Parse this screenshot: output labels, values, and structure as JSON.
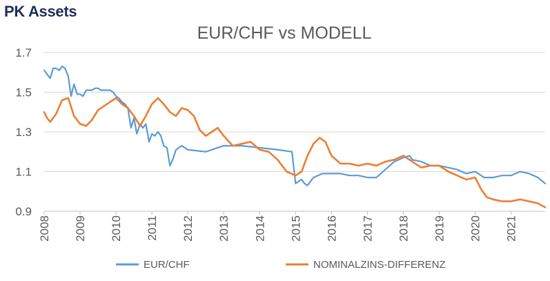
{
  "brand": {
    "logo_text": "PK Assets"
  },
  "chart_data": {
    "type": "line",
    "title": "EUR/CHF vs MODELL",
    "xlabel": "",
    "ylabel": "",
    "ylim": [
      0.9,
      1.7
    ],
    "yticks": [
      "1.7",
      "1.5",
      "1.3",
      "1.1",
      "0.9"
    ],
    "ytick_values": [
      1.7,
      1.5,
      1.3,
      1.1,
      0.9
    ],
    "xlim": [
      2008.0,
      2021.95
    ],
    "xticks": [
      "2008",
      "2009",
      "2010",
      "2011",
      "2012",
      "2013",
      "2014",
      "2015",
      "2016",
      "2017",
      "2018",
      "2019",
      "2020",
      "2021"
    ],
    "grid": "horizontal",
    "legend_position": "bottom",
    "colors": {
      "eurchf": "#5b9bd5",
      "nominal": "#ed7d31",
      "grid": "#d9d9d9",
      "axis": "#bfbfbf",
      "text": "#595959"
    },
    "series": [
      {
        "name": "EUR/CHF",
        "color": "#5b9bd5",
        "x": [
          2008.0,
          2008.08,
          2008.17,
          2008.25,
          2008.33,
          2008.42,
          2008.5,
          2008.58,
          2008.67,
          2008.75,
          2008.83,
          2008.92,
          2009.0,
          2009.08,
          2009.17,
          2009.25,
          2009.33,
          2009.42,
          2009.5,
          2009.58,
          2009.67,
          2009.75,
          2009.83,
          2009.92,
          2010.0,
          2010.08,
          2010.17,
          2010.25,
          2010.33,
          2010.42,
          2010.5,
          2010.58,
          2010.67,
          2010.75,
          2010.83,
          2010.92,
          2011.0,
          2011.08,
          2011.17,
          2011.25,
          2011.33,
          2011.42,
          2011.5,
          2011.58,
          2011.67,
          2011.75,
          2011.83,
          2012.0,
          2012.5,
          2013.0,
          2013.5,
          2014.0,
          2014.5,
          2014.9,
          2015.0,
          2015.08,
          2015.17,
          2015.25,
          2015.33,
          2015.5,
          2015.75,
          2016.0,
          2016.25,
          2016.5,
          2016.75,
          2017.0,
          2017.25,
          2017.5,
          2017.75,
          2018.0,
          2018.17,
          2018.25,
          2018.5,
          2018.75,
          2019.0,
          2019.25,
          2019.5,
          2019.75,
          2020.0,
          2020.25,
          2020.5,
          2020.75,
          2021.0,
          2021.25,
          2021.5,
          2021.75,
          2021.95
        ],
        "y": [
          1.61,
          1.59,
          1.57,
          1.62,
          1.62,
          1.61,
          1.63,
          1.62,
          1.58,
          1.48,
          1.54,
          1.49,
          1.49,
          1.48,
          1.51,
          1.51,
          1.51,
          1.52,
          1.52,
          1.51,
          1.51,
          1.51,
          1.51,
          1.5,
          1.48,
          1.47,
          1.45,
          1.44,
          1.42,
          1.32,
          1.37,
          1.29,
          1.34,
          1.32,
          1.34,
          1.25,
          1.29,
          1.28,
          1.3,
          1.28,
          1.23,
          1.22,
          1.13,
          1.16,
          1.21,
          1.22,
          1.23,
          1.21,
          1.2,
          1.23,
          1.23,
          1.22,
          1.21,
          1.2,
          1.04,
          1.05,
          1.06,
          1.04,
          1.03,
          1.07,
          1.09,
          1.09,
          1.09,
          1.08,
          1.08,
          1.07,
          1.07,
          1.11,
          1.15,
          1.17,
          1.18,
          1.16,
          1.15,
          1.13,
          1.13,
          1.12,
          1.11,
          1.09,
          1.1,
          1.07,
          1.07,
          1.08,
          1.08,
          1.1,
          1.09,
          1.07,
          1.04
        ]
      },
      {
        "name": "NOMINALZINS-DIFFERENZ",
        "color": "#ed7d31",
        "x": [
          2008.0,
          2008.08,
          2008.17,
          2008.33,
          2008.5,
          2008.67,
          2008.83,
          2009.0,
          2009.17,
          2009.33,
          2009.5,
          2009.67,
          2009.83,
          2010.0,
          2010.17,
          2010.33,
          2010.5,
          2010.67,
          2010.83,
          2011.0,
          2011.17,
          2011.33,
          2011.5,
          2011.67,
          2011.83,
          2012.0,
          2012.17,
          2012.33,
          2012.5,
          2012.67,
          2012.83,
          2013.0,
          2013.25,
          2013.5,
          2013.75,
          2014.0,
          2014.25,
          2014.5,
          2014.75,
          2015.0,
          2015.17,
          2015.33,
          2015.5,
          2015.67,
          2015.83,
          2016.0,
          2016.25,
          2016.5,
          2016.75,
          2017.0,
          2017.25,
          2017.5,
          2017.75,
          2018.0,
          2018.25,
          2018.5,
          2018.75,
          2019.0,
          2019.25,
          2019.5,
          2019.75,
          2020.0,
          2020.17,
          2020.33,
          2020.5,
          2020.75,
          2021.0,
          2021.25,
          2021.5,
          2021.75,
          2021.95
        ],
        "y": [
          1.4,
          1.37,
          1.35,
          1.39,
          1.46,
          1.47,
          1.38,
          1.34,
          1.33,
          1.36,
          1.41,
          1.43,
          1.45,
          1.47,
          1.44,
          1.42,
          1.38,
          1.33,
          1.38,
          1.44,
          1.47,
          1.44,
          1.4,
          1.38,
          1.42,
          1.41,
          1.38,
          1.31,
          1.28,
          1.3,
          1.32,
          1.28,
          1.23,
          1.24,
          1.25,
          1.21,
          1.2,
          1.16,
          1.1,
          1.08,
          1.1,
          1.18,
          1.24,
          1.27,
          1.25,
          1.18,
          1.14,
          1.14,
          1.13,
          1.14,
          1.13,
          1.15,
          1.16,
          1.18,
          1.15,
          1.12,
          1.13,
          1.13,
          1.1,
          1.08,
          1.06,
          1.07,
          1.01,
          0.97,
          0.96,
          0.95,
          0.95,
          0.96,
          0.95,
          0.94,
          0.92
        ]
      }
    ]
  }
}
